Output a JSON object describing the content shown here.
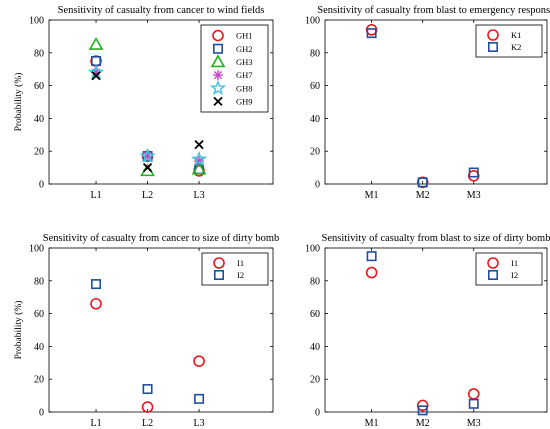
{
  "charts": [
    {
      "type": "scatter",
      "title": "Sensitivity of casualty from cancer to wind fields",
      "ylabel": "Probability (%)",
      "xlabel": "",
      "categories": [
        "L1",
        "L2",
        "L3"
      ],
      "ylim": [
        0,
        100
      ],
      "yticks": [
        0,
        20,
        40,
        60,
        80,
        100
      ],
      "grid": false,
      "legend_position": "top-right",
      "series": [
        {
          "name": "GH1",
          "marker": "circle",
          "color": "#e8191f",
          "values": [
            75,
            17,
            8
          ]
        },
        {
          "name": "GH2",
          "marker": "square",
          "color": "#1f4fa0",
          "values": [
            75,
            17,
            9
          ]
        },
        {
          "name": "GH3",
          "marker": "triangle",
          "color": "#1fb41f",
          "values": [
            85,
            8,
            9
          ]
        },
        {
          "name": "GH7",
          "marker": "asterisk",
          "color": "#c548c5",
          "values": [
            68,
            17,
            14
          ]
        },
        {
          "name": "GH8",
          "marker": "star",
          "color": "#3fc3dd",
          "values": [
            68,
            17,
            15
          ]
        },
        {
          "name": "GH9",
          "marker": "x",
          "color": "#000000",
          "values": [
            66,
            10,
            24
          ]
        }
      ]
    },
    {
      "type": "scatter",
      "title": "Sensitivity of casualty from blast to emergency response",
      "ylabel": "",
      "xlabel": "",
      "categories": [
        "M1",
        "M2",
        "M3"
      ],
      "ylim": [
        0,
        100
      ],
      "yticks": [
        0,
        20,
        40,
        60,
        80,
        100
      ],
      "grid": false,
      "legend_position": "top-right",
      "series": [
        {
          "name": "K1",
          "marker": "circle",
          "color": "#e8191f",
          "values": [
            94,
            1,
            5
          ]
        },
        {
          "name": "K2",
          "marker": "square",
          "color": "#1f4fa0",
          "values": [
            92,
            1,
            7
          ]
        }
      ]
    },
    {
      "type": "scatter",
      "title": "Sensitivity of casualty from cancer to size of dirty bomb",
      "ylabel": "Probability (%)",
      "xlabel": "",
      "categories": [
        "L1",
        "L2",
        "L3"
      ],
      "ylim": [
        0,
        100
      ],
      "yticks": [
        0,
        20,
        40,
        60,
        80,
        100
      ],
      "grid": false,
      "legend_position": "top-right",
      "series": [
        {
          "name": "I1",
          "marker": "circle",
          "color": "#e8191f",
          "values": [
            66,
            3,
            31
          ]
        },
        {
          "name": "I2",
          "marker": "square",
          "color": "#1f4fa0",
          "values": [
            78,
            14,
            8
          ]
        }
      ]
    },
    {
      "type": "scatter",
      "title": "Sensitivity of casualty from blast to size of dirty bomb",
      "ylabel": "",
      "xlabel": "",
      "categories": [
        "M1",
        "M2",
        "M3"
      ],
      "ylim": [
        0,
        100
      ],
      "yticks": [
        0,
        20,
        40,
        60,
        80,
        100
      ],
      "grid": false,
      "legend_position": "top-right",
      "series": [
        {
          "name": "I1",
          "marker": "circle",
          "color": "#e8191f",
          "values": [
            85,
            4,
            11
          ]
        },
        {
          "name": "I2",
          "marker": "square",
          "color": "#1f4fa0",
          "values": [
            95,
            1,
            5
          ]
        }
      ]
    }
  ]
}
